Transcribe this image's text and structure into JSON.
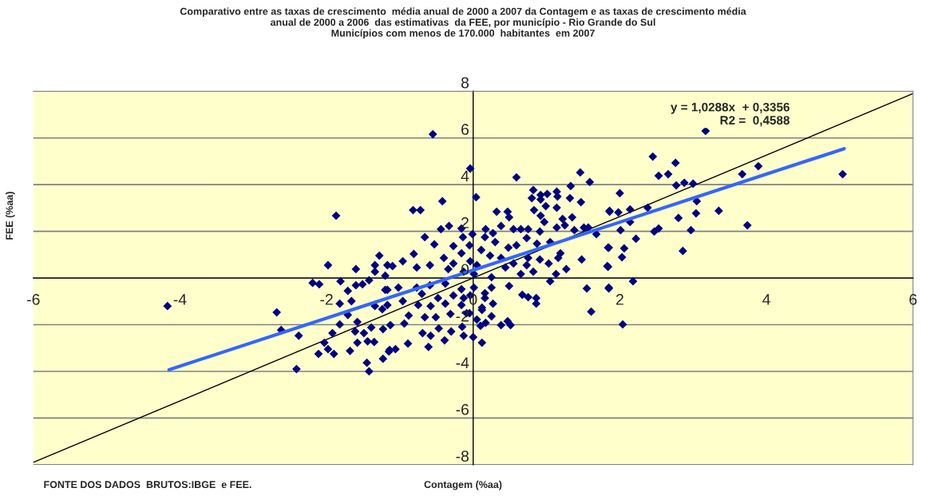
{
  "chart_data": {
    "type": "scatter",
    "title": "Comparativo entre as taxas de crescimento  média anual de 2000 a 2007 da Contagem e as taxas de crescimento média\nanual de 2000 a 2006  das estimativas  da FEE, por município - Rio Grande do Sul\nMunicípios com menos de 170.000  habitantes  em 2007",
    "xlabel": "Contagem (%aa)",
    "ylabel": "FEE (%aa)",
    "annotations": [
      "y = 1,0288x  + 0,3356\nR2 =  0,4588",
      "FONTE DOS DADOS  BRUTOS:IBGE  e FEE."
    ],
    "xlim": [
      -6,
      6
    ],
    "ylim": [
      -8,
      8
    ],
    "xticks": [
      -6,
      -4,
      -2,
      0,
      2,
      4,
      6
    ],
    "yticks": [
      -8,
      -6,
      -4,
      -2,
      0,
      2,
      4,
      6,
      8
    ],
    "grid": "y",
    "marker": "diamond",
    "series": [
      {
        "color": "#000080",
        "x": [
          -4.17,
          -1.87,
          -0.55,
          -0.04,
          3.17,
          2.0,
          1.86,
          1.98,
          2.14,
          2.38,
          2.77,
          2.88,
          3.0,
          3.05,
          3.04,
          2.8,
          3.35,
          3.67,
          3.89,
          5.04,
          3.74,
          2.97,
          2.47,
          2.53,
          2.14,
          2.01,
          2.22,
          1.84,
          2.06,
          2.03,
          2.86,
          1.83,
          2.45,
          2.66,
          2.53,
          2.76,
          1.85,
          2.18,
          2.04,
          -2.68,
          -2.62,
          -2.38,
          -2.41,
          -2.19,
          -2.1,
          -1.81,
          -1.82,
          -1.71,
          -1.71,
          -1.82,
          -1.92,
          -2.03,
          -2.11,
          -1.98,
          -1.9,
          -1.68,
          -1.58,
          -1.61,
          -1.44,
          -1.35,
          -1.45,
          -1.42,
          -1.23,
          -1.14,
          -1.23,
          -1.39,
          -1.49,
          -1.58,
          -1.66,
          -1.6,
          -1.51,
          -1.42,
          -1.34,
          -1.24,
          -1.17,
          -1.34,
          -1.6,
          -1.98,
          -1.06,
          -1.15,
          -0.89,
          -0.61,
          -0.39,
          -0.13,
          0.0,
          0.12,
          -0.58,
          -0.69,
          -0.47,
          -0.3,
          -0.15,
          0.1,
          0.17,
          0.05,
          0.38,
          0.47,
          0.51,
          0.25,
          0.12,
          -0.09,
          -0.31,
          -0.51,
          -0.94,
          -1.13,
          -0.88,
          -0.66,
          -0.75,
          -0.58,
          -0.38,
          -0.16,
          -0.05,
          0.12,
          0.27,
          0.16,
          -0.04,
          -0.13,
          -0.27,
          -0.48,
          -0.7,
          -0.96,
          -1.17,
          -1.2,
          -1.02,
          -0.77,
          -0.59,
          -0.38,
          -0.16,
          0.01,
          0.16,
          0.25,
          0.67,
          0.75,
          0.86,
          0.86,
          1.55,
          1.61,
          1.85,
          0.25,
          0.49,
          0.65,
          0.82,
          1.05,
          1.13,
          1.27,
          1.84,
          0.73,
          0.44,
          0.01,
          -0.13,
          -0.34,
          -0.77,
          -1.1,
          -1.2,
          0.04,
          -0.42,
          -0.82,
          -0.72,
          0.59,
          0.32,
          0.47,
          0.49,
          0.38,
          -0.44,
          -0.33,
          -0.16,
          -0.66,
          -0.53,
          -0.14,
          -0.01,
          0.17,
          0.27,
          0.82,
          0.8,
          0.92,
          1.01,
          0.92,
          0.99,
          0.83,
          1.14,
          1.15,
          1.33,
          1.32,
          1.14,
          1.46,
          1.59,
          1.47,
          1.35,
          1.22,
          0.92,
          0.97,
          0.55,
          0.65,
          0.75,
          0.91,
          1.14,
          1.25,
          1.38,
          1.51,
          1.57,
          1.68,
          1.86,
          1.85,
          1.48,
          1.19,
          1.05,
          0.87,
          0.73,
          0.59,
          0.75,
          0.91,
          1.03,
          1.16,
          0.48,
          0.3,
          0.16,
          0.11,
          0.23,
          0.38,
          0.55,
          -0.05,
          -0.16,
          -0.27,
          -0.4,
          -0.59,
          -0.81,
          -0.96,
          -1.17,
          -1.28,
          -0.27,
          -0.04,
          0.05,
          -1.34
        ],
        "values": [
          -1.2,
          2.67,
          6.16,
          4.69,
          6.3,
          3.63,
          2.88,
          2.81,
          2.94,
          3.01,
          3.97,
          4.08,
          4.04,
          3.29,
          2.77,
          2.57,
          2.88,
          4.45,
          4.79,
          4.45,
          2.26,
          2.05,
          1.99,
          2.12,
          2.4,
          2.05,
          1.68,
          1.3,
          1.27,
          0.89,
          1.16,
          0.51,
          5.2,
          4.45,
          4.38,
          4.93,
          -0.45,
          -0.14,
          -1.99,
          -1.47,
          -2.23,
          -2.47,
          -3.9,
          -0.21,
          -0.27,
          -0.14,
          -1.1,
          -0.55,
          -1.58,
          -1.99,
          -2.36,
          -2.77,
          -3.25,
          -3.05,
          -3.25,
          -3.12,
          -2.77,
          -2.29,
          -2.71,
          -2.74,
          -3.63,
          -4.0,
          -3.46,
          -3.08,
          -2.19,
          -2.12,
          -2.36,
          -1.88,
          -0.99,
          -0.31,
          -0.27,
          -0.1,
          -1.2,
          -1.34,
          -0.51,
          0.27,
          0.38,
          0.55,
          -3.05,
          -3.15,
          -2.81,
          -2.95,
          -2.67,
          -2.47,
          -2.53,
          -2.77,
          -2.47,
          -2.36,
          -2.16,
          -2.29,
          -2.09,
          -2.05,
          -1.92,
          -1.78,
          -2.02,
          -1.85,
          -2.02,
          -1.64,
          -1.37,
          -1.51,
          -1.54,
          -1.68,
          -1.95,
          -2.02,
          -1.61,
          -1.68,
          -1.16,
          -1.2,
          -1.1,
          -1.16,
          -1.51,
          -1.27,
          -1.1,
          -0.86,
          -0.75,
          -0.86,
          -0.75,
          -0.86,
          -0.68,
          -0.99,
          -1.16,
          -0.51,
          -0.41,
          -0.41,
          -0.31,
          -0.24,
          -0.48,
          -0.41,
          -0.65,
          -0.41,
          -0.72,
          -0.82,
          -0.86,
          -1.1,
          -0.45,
          -1.44,
          -0.41,
          0.03,
          -0.34,
          0.17,
          0.27,
          -0.14,
          0.17,
          0.38,
          0.48,
          0.55,
          0.45,
          0.17,
          0.27,
          0.38,
          0.45,
          0.51,
          0.1,
          3.46,
          3.29,
          2.91,
          2.91,
          4.31,
          2.84,
          2.84,
          2.6,
          2.23,
          2.09,
          2.23,
          2.12,
          1.75,
          1.44,
          1.75,
          1.88,
          2.09,
          1.92,
          3.77,
          3.42,
          3.56,
          3.6,
          3.36,
          3.08,
          2.91,
          3.7,
          3.49,
          3.94,
          3.42,
          3.01,
          4.52,
          4.11,
          3.25,
          2.6,
          2.53,
          2.67,
          2.4,
          2.09,
          2.09,
          2.09,
          1.99,
          2.16,
          2.26,
          2.05,
          2.16,
          2.16,
          1.88,
          2.84,
          1.3,
          0.79,
          1.06,
          1.54,
          1.47,
          1.71,
          1.4,
          0.86,
          0.79,
          0.62,
          0.86,
          1.3,
          1.54,
          1.75,
          1.2,
          0.96,
          0.86,
          0.62,
          1.4,
          1.06,
          1.37,
          0.86,
          0.55,
          1.03,
          0.72,
          0.55,
          0.96,
          0.62,
          0.72,
          0.55,
          0.55
        ]
      },
      {
        "type": "line",
        "color": "#000000",
        "x": [
          -6,
          6
        ],
        "values": [
          -7.9,
          7.9
        ],
        "marker": "none"
      },
      {
        "type": "line",
        "color": "#3366ff",
        "x": [
          -4.15,
          5.06
        ],
        "values": [
          -3.93,
          5.54
        ],
        "marker": "none"
      }
    ]
  }
}
